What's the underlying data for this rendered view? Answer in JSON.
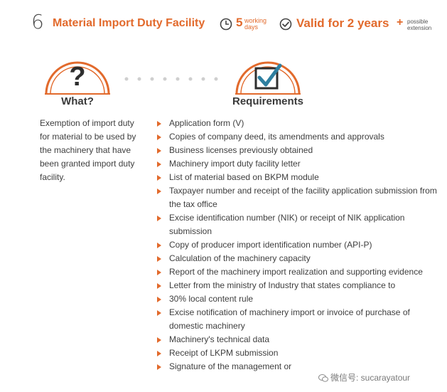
{
  "header": {
    "number": "6",
    "title": "Material Import Duty Facility",
    "days_value": "5",
    "days_label": "working days",
    "valid_label": "Valid for 2 years",
    "plus": "+",
    "extension_label": "possible extension"
  },
  "what": {
    "heading": "What?",
    "description": "Exemption of import duty for material to be used by the machinery that have been granted import duty facility."
  },
  "requirements": {
    "heading": "Requirements",
    "items": [
      "Application form (V)",
      "Copies of company deed, its amendments and approvals",
      "Business licenses previously obtained",
      "Machinery import duty facility letter",
      "List of material based on BKPM module",
      "Taxpayer number and receipt of the facility application submission from the tax office",
      "Excise identification number (NIK) or receipt of NIK application submission",
      "Copy of producer import identification number (API-P)",
      "Calculation of the machinery capacity",
      "Report of the machinery import realization and supporting evidence",
      "Letter from the ministry of Industry that states compliance to",
      "30% local content rule",
      "Excise notification of machinery import or invoice of purchase of domestic machinery",
      "Machinery's technical data",
      "Receipt of LKPM submission",
      "Signature of the management or"
    ]
  },
  "watermark": {
    "text": "微信号: sucarayatour"
  },
  "colors": {
    "accent": "#e26a2c",
    "text": "#3e3e3e",
    "dots": "#cfcfcf"
  }
}
